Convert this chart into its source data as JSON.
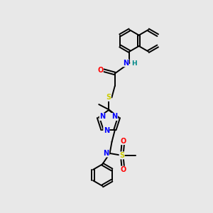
{
  "background_color": "#e8e8e8",
  "bond_color": "#000000",
  "atom_colors": {
    "N": "#0000ff",
    "O": "#ff0000",
    "S": "#cccc00",
    "H": "#008888",
    "C": "#000000"
  },
  "figsize": [
    3.0,
    3.0
  ],
  "dpi": 100,
  "lw": 1.4,
  "fs": 7.0
}
